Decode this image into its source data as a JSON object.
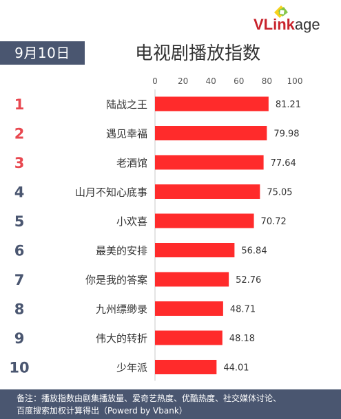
{
  "header": {
    "date": "9月10日",
    "title": "电视剧播放指数",
    "logo_text_v": "VLink",
    "logo_text_age": "age"
  },
  "footer": {
    "line1": "备注：播放指数由剧集播放量、爱奇艺热度、优酷热度、社交媒体讨论、",
    "line2": "百度搜索加权计算得出（Powerd by Vbank）"
  },
  "colors": {
    "bar": "#ff2b2b",
    "rank_top": "#e8474f",
    "rank_other": "#4a5670",
    "badge_bg": "#4a5670"
  },
  "chart_data": {
    "type": "bar",
    "orientation": "horizontal",
    "ranks": [
      "1",
      "2",
      "3",
      "4",
      "5",
      "6",
      "7",
      "8",
      "9",
      "10"
    ],
    "categories": [
      "陆战之王",
      "遇见幸福",
      "老酒馆",
      "山月不知心底事",
      "小欢喜",
      "最美的安排",
      "你是我的答案",
      "九州缥缈录",
      "伟大的转折",
      "少年派"
    ],
    "values": [
      81.21,
      79.98,
      77.64,
      75.05,
      70.72,
      56.84,
      52.76,
      48.71,
      48.18,
      44.01
    ],
    "value_labels": [
      "81.21",
      "79.98",
      "77.64",
      "75.05",
      "70.72",
      "56.84",
      "52.76",
      "48.71",
      "48.18",
      "44.01"
    ],
    "xticks": [
      "0",
      "20",
      "40",
      "60",
      "80",
      "100"
    ],
    "xlim": [
      0,
      100
    ],
    "grid": false,
    "legend": "none"
  }
}
